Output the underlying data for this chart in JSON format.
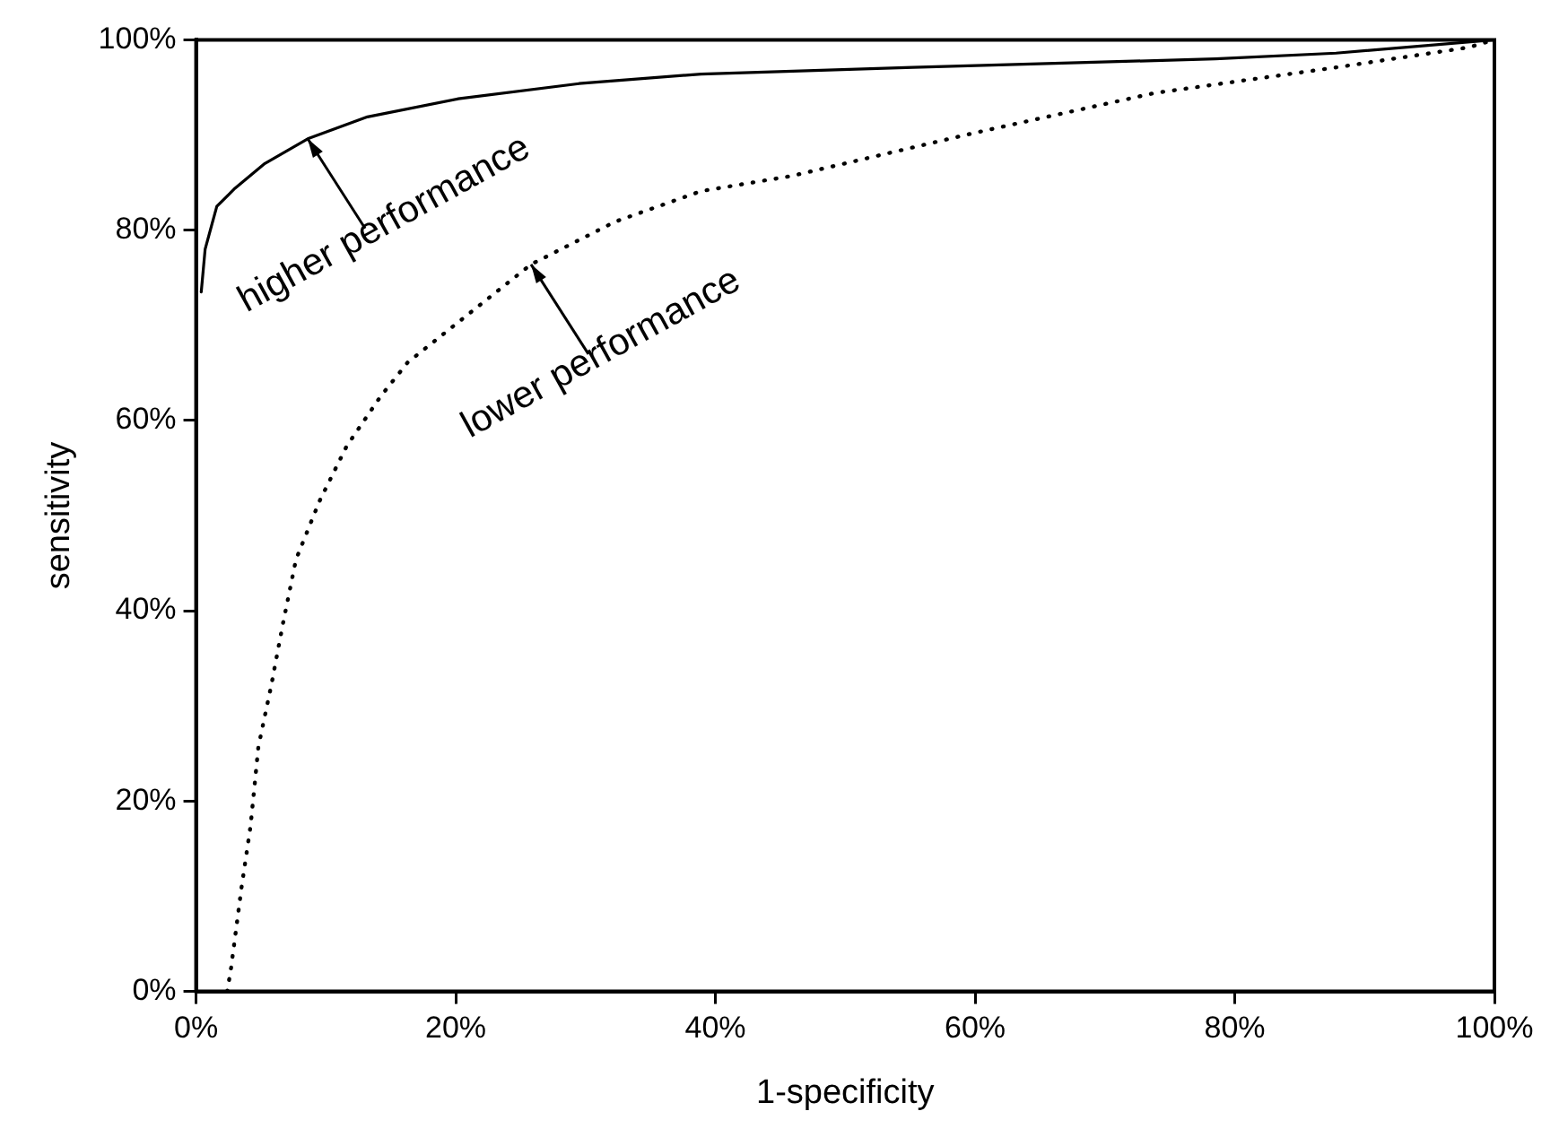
{
  "chart_data": {
    "type": "line",
    "xlabel": "1-specificity",
    "ylabel": "sensitivity",
    "xlim": [
      0,
      100
    ],
    "ylim": [
      0,
      100
    ],
    "xticks": [
      {
        "value": 0,
        "label": "0%"
      },
      {
        "value": 20,
        "label": "20%"
      },
      {
        "value": 40,
        "label": "40%"
      },
      {
        "value": 60,
        "label": "60%"
      },
      {
        "value": 80,
        "label": "80%"
      },
      {
        "value": 100,
        "label": "100%"
      }
    ],
    "yticks": [
      {
        "value": 0,
        "label": "0%"
      },
      {
        "value": 20,
        "label": "20%"
      },
      {
        "value": 40,
        "label": "40%"
      },
      {
        "value": 60,
        "label": "60%"
      },
      {
        "value": 80,
        "label": "80%"
      },
      {
        "value": 100,
        "label": "100%"
      }
    ],
    "grid": false,
    "legend": false,
    "marker": "none",
    "series": [
      {
        "color": "#000000",
        "line_style": "solid",
        "x": [
          0.4,
          0.7,
          1.6,
          3.0,
          5.3,
          8.6,
          13.2,
          20.2,
          29.5,
          38.9,
          55.2,
          78.5,
          87.8,
          100
        ],
        "values": [
          73.5,
          78,
          82.5,
          84.4,
          87,
          89.6,
          91.9,
          93.8,
          95.4,
          96.4,
          97.1,
          98,
          98.6,
          100
        ]
      },
      {
        "color": "#000000",
        "line_style": "dotted",
        "x": [
          2.4,
          2.7,
          3.5,
          4.2,
          4.8,
          5.8,
          6.7,
          7.7,
          9.5,
          11.6,
          14.2,
          16.3,
          25.8,
          32.3,
          38.9,
          45.9,
          59.9,
          73.8,
          87.8,
          98.0,
          100
        ],
        "values": [
          0,
          2.5,
          10.9,
          17.4,
          25.7,
          32.2,
          38.7,
          45.4,
          51.5,
          57.3,
          62.5,
          66.1,
          76.4,
          80.9,
          84.1,
          85.7,
          90.2,
          94.4,
          97.1,
          99.2,
          100
        ]
      }
    ],
    "annotations": [
      {
        "text": "higher performance",
        "x": 8.6,
        "y": 89.6
      },
      {
        "text": "lower performance",
        "x": 25.8,
        "y": 76.4
      }
    ]
  }
}
